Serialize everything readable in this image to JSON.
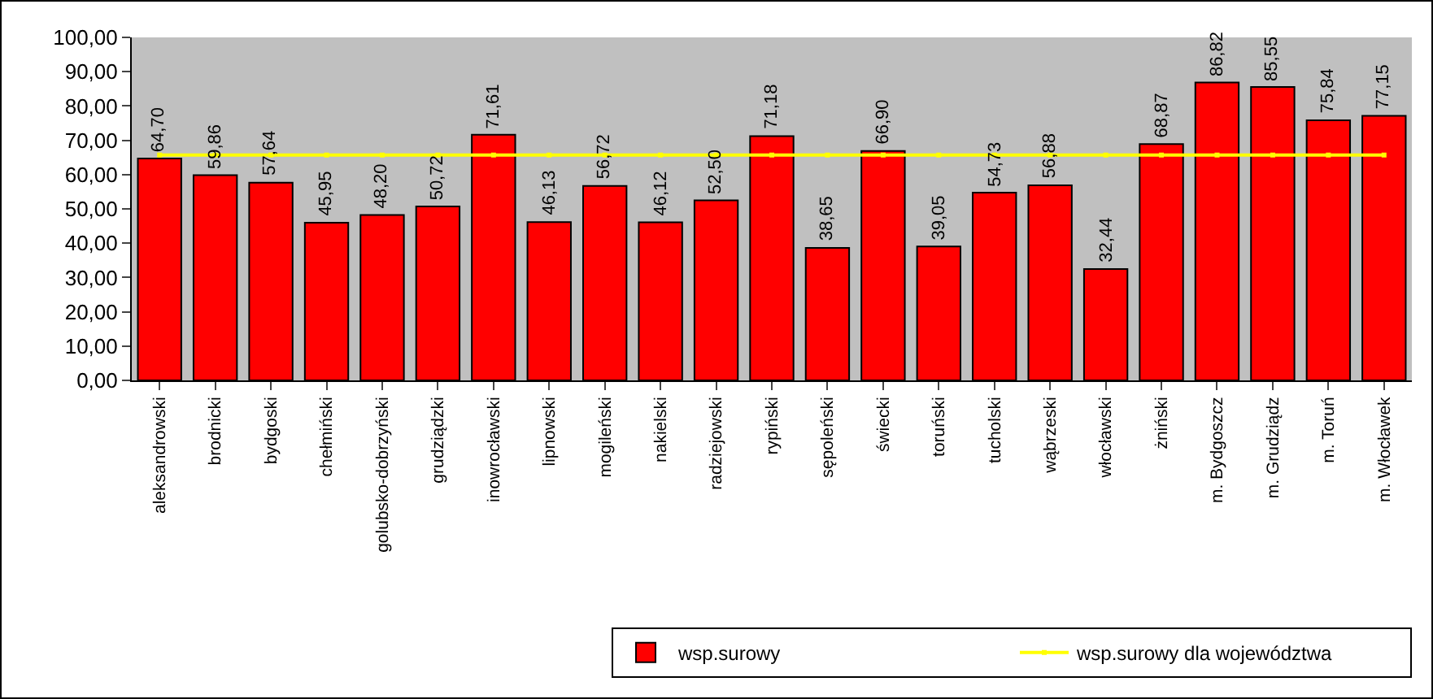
{
  "chart_data": {
    "type": "bar",
    "categories": [
      "aleksandrowski",
      "brodnicki",
      "bydgoski",
      "chełmiński",
      "golubsko-dobrzyński",
      "grudziądzki",
      "inowrocławski",
      "lipnowski",
      "mogileński",
      "nakielski",
      "radziejowski",
      "rypiński",
      "sępoleński",
      "świecki",
      "toruński",
      "tucholski",
      "wąbrzeski",
      "włocławski",
      "żniński",
      "m. Bydgoszcz",
      "m. Grudziądz",
      "m. Toruń",
      "m. Włocławek"
    ],
    "series": [
      {
        "name": "wsp.surowy",
        "color": "#ff0000",
        "values": [
          64.7,
          59.86,
          57.64,
          45.95,
          48.2,
          50.72,
          71.61,
          46.13,
          56.72,
          46.12,
          52.5,
          71.18,
          38.65,
          66.9,
          39.05,
          54.73,
          56.88,
          32.44,
          68.87,
          86.82,
          85.55,
          75.84,
          77.15
        ],
        "value_labels": [
          "64,70",
          "59,86",
          "57,64",
          "45,95",
          "48,20",
          "50,72",
          "71,61",
          "46,13",
          "56,72",
          "46,12",
          "52,50",
          "71,18",
          "38,65",
          "66,90",
          "39,05",
          "54,73",
          "56,88",
          "32,44",
          "68,87",
          "86,82",
          "85,55",
          "75,84",
          "77,15"
        ]
      },
      {
        "name": "wsp.surowy dla województwa",
        "type": "line",
        "color": "#ffff00",
        "values": [
          65.7,
          65.7,
          65.7,
          65.7,
          65.7,
          65.7,
          65.7,
          65.7,
          65.7,
          65.7,
          65.7,
          65.7,
          65.7,
          65.7,
          65.7,
          65.7,
          65.7,
          65.7,
          65.7,
          65.7,
          65.7,
          65.7,
          65.7
        ]
      }
    ],
    "ylim": [
      0,
      100
    ],
    "yticks": [
      {
        "value": 0,
        "label": "0,00"
      },
      {
        "value": 10,
        "label": "10,00"
      },
      {
        "value": 20,
        "label": "20,00"
      },
      {
        "value": 30,
        "label": "30,00"
      },
      {
        "value": 40,
        "label": "40,00"
      },
      {
        "value": 50,
        "label": "50,00"
      },
      {
        "value": 60,
        "label": "60,00"
      },
      {
        "value": 70,
        "label": "70,00"
      },
      {
        "value": 80,
        "label": "80,00"
      },
      {
        "value": 90,
        "label": "90,00"
      },
      {
        "value": 100,
        "label": "100,00"
      }
    ],
    "grid": false,
    "legend": "bottom right",
    "marker": "square",
    "line_style": "solid"
  }
}
